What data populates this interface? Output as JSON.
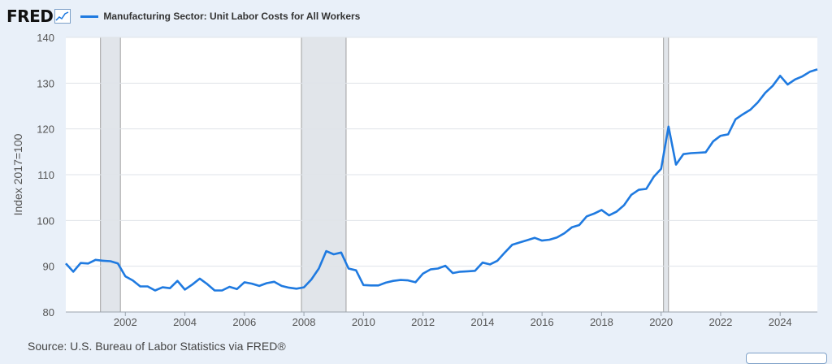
{
  "logo": {
    "text": "FRED",
    "icon": "line-graph-icon"
  },
  "legend": {
    "label": "Manufacturing Sector: Unit Labor Costs for All Workers",
    "color": "#1f7ae0"
  },
  "source": "Source: U.S. Bureau of Labor Statistics via FRED®",
  "chart_data": {
    "type": "line",
    "title": "Manufacturing Sector: Unit Labor Costs for All Workers",
    "xlabel": "",
    "ylabel": "Index 2017=100",
    "xlim": [
      "2000-01-01",
      "2025-04-01"
    ],
    "ylim": [
      80,
      140
    ],
    "y_ticks": [
      80,
      90,
      100,
      110,
      120,
      130,
      140
    ],
    "x_ticks": [
      "2002",
      "2004",
      "2006",
      "2008",
      "2010",
      "2012",
      "2014",
      "2016",
      "2018",
      "2020",
      "2022",
      "2024"
    ],
    "grid": true,
    "line_color": "#1f7ae0",
    "recessions": [
      {
        "start": "2001-03-01",
        "end": "2001-11-01"
      },
      {
        "start": "2007-12-01",
        "end": "2009-06-01"
      },
      {
        "start": "2020-02-01",
        "end": "2020-04-01"
      }
    ],
    "series": [
      {
        "x": [
          "2000-01-01",
          "2000-04-01",
          "2000-07-01",
          "2000-10-01",
          "2001-01-01",
          "2001-04-01",
          "2001-07-01",
          "2001-10-01",
          "2002-01-01",
          "2002-04-01",
          "2002-07-01",
          "2002-10-01",
          "2003-01-01",
          "2003-04-01",
          "2003-07-01",
          "2003-10-01",
          "2004-01-01",
          "2004-04-01",
          "2004-07-01",
          "2004-10-01",
          "2005-01-01",
          "2005-04-01",
          "2005-07-01",
          "2005-10-01",
          "2006-01-01",
          "2006-04-01",
          "2006-07-01",
          "2006-10-01",
          "2007-01-01",
          "2007-04-01",
          "2007-07-01",
          "2007-10-01",
          "2008-01-01",
          "2008-04-01",
          "2008-07-01",
          "2008-10-01",
          "2009-01-01",
          "2009-04-01",
          "2009-07-01",
          "2009-10-01",
          "2010-01-01",
          "2010-04-01",
          "2010-07-01",
          "2010-10-01",
          "2011-01-01",
          "2011-04-01",
          "2011-07-01",
          "2011-10-01",
          "2012-01-01",
          "2012-04-01",
          "2012-07-01",
          "2012-10-01",
          "2013-01-01",
          "2013-04-01",
          "2013-07-01",
          "2013-10-01",
          "2014-01-01",
          "2014-04-01",
          "2014-07-01",
          "2014-10-01",
          "2015-01-01",
          "2015-04-01",
          "2015-07-01",
          "2015-10-01",
          "2016-01-01",
          "2016-04-01",
          "2016-07-01",
          "2016-10-01",
          "2017-01-01",
          "2017-04-01",
          "2017-07-01",
          "2017-10-01",
          "2018-01-01",
          "2018-04-01",
          "2018-07-01",
          "2018-10-01",
          "2019-01-01",
          "2019-04-01",
          "2019-07-01",
          "2019-10-01",
          "2020-01-01",
          "2020-04-01",
          "2020-07-01",
          "2020-10-01",
          "2021-01-01",
          "2021-04-01",
          "2021-07-01",
          "2021-10-01",
          "2022-01-01",
          "2022-04-01",
          "2022-07-01",
          "2022-10-01",
          "2023-01-01",
          "2023-04-01",
          "2023-07-01",
          "2023-10-01",
          "2024-01-01",
          "2024-04-01",
          "2024-07-01",
          "2024-10-01",
          "2025-01-01",
          "2025-04-01"
        ],
        "y": [
          90.6,
          88.8,
          90.7,
          90.6,
          91.4,
          91.2,
          91.1,
          90.6,
          87.8,
          86.9,
          85.6,
          85.6,
          84.7,
          85.4,
          85.2,
          86.8,
          84.9,
          86.0,
          87.3,
          86.1,
          84.7,
          84.7,
          85.5,
          85.0,
          86.5,
          86.2,
          85.7,
          86.3,
          86.6,
          85.7,
          85.3,
          85.1,
          85.4,
          87.1,
          89.5,
          93.3,
          92.6,
          93.0,
          89.5,
          89.1,
          85.9,
          85.8,
          85.8,
          86.4,
          86.8,
          87.0,
          86.9,
          86.5,
          88.4,
          89.3,
          89.5,
          90.1,
          88.5,
          88.8,
          88.9,
          89.0,
          90.8,
          90.4,
          91.2,
          93.0,
          94.7,
          95.2,
          95.7,
          96.2,
          95.6,
          95.8,
          96.3,
          97.2,
          98.5,
          99.0,
          100.9,
          101.5,
          102.3,
          101.1,
          101.9,
          103.3,
          105.6,
          106.7,
          106.9,
          109.5,
          111.3,
          120.5,
          112.2,
          114.5,
          114.7,
          114.8,
          114.9,
          117.3,
          118.5,
          118.8,
          122.1,
          123.2,
          124.2,
          125.8,
          127.9,
          129.4,
          131.6,
          129.7,
          130.8,
          131.5,
          132.5,
          133.0
        ]
      }
    ]
  }
}
